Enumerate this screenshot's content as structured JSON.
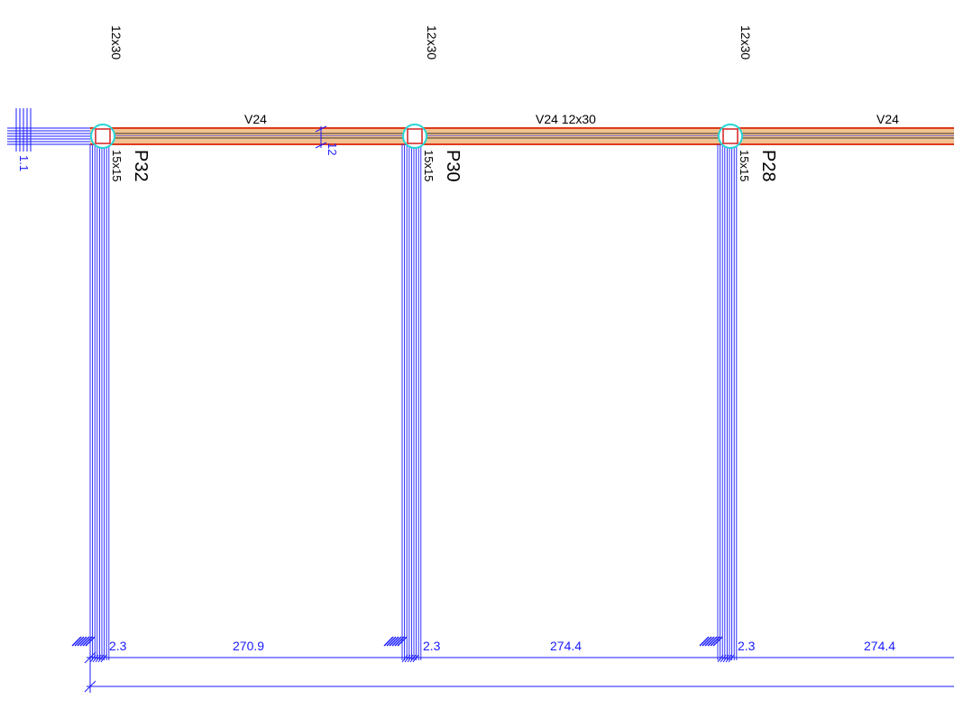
{
  "colors": {
    "beam_fill": "#f2c391",
    "beam_edge": "#e03a1e",
    "beam_axis": "#000000",
    "dimension_blue": "#1a1aff",
    "column_circle": "#27d6d6",
    "column_square": "#d42020",
    "text_black": "#000000"
  },
  "beam": {
    "name": "V24",
    "name_with_section": "V24 12x30"
  },
  "beam_spans": [
    {
      "label": "V24"
    },
    {
      "label": "V24 12x30"
    },
    {
      "label": "V24"
    }
  ],
  "top_sections": [
    "12x30",
    "12x30",
    "12x30"
  ],
  "columns": [
    {
      "name": "P32",
      "section": "15x15"
    },
    {
      "name": "P30",
      "section": "15x15"
    },
    {
      "name": "P28",
      "section": "15x15"
    }
  ],
  "small_dimension": "12",
  "left_fragment_label": "1.1",
  "bottom_dimensions": [
    {
      "value": "2.3",
      "kind": "column"
    },
    {
      "value": "270.9",
      "kind": "span"
    },
    {
      "value": "2.3",
      "kind": "column"
    },
    {
      "value": "274.4",
      "kind": "span"
    },
    {
      "value": "2.3",
      "kind": "column"
    },
    {
      "value": "274.4",
      "kind": "span"
    }
  ]
}
